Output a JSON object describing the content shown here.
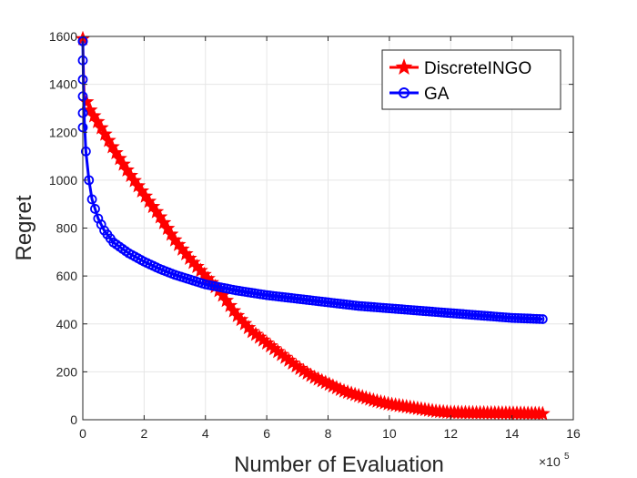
{
  "chart_data": {
    "type": "line",
    "title": "",
    "xlabel": "Number of Evaluation",
    "ylabel": "Regret",
    "x_exponent_base": "×10",
    "x_exponent_power": "5",
    "xlim": [
      0,
      16
    ],
    "ylim": [
      0,
      1600
    ],
    "xticks": [
      "0",
      "2",
      "4",
      "6",
      "8",
      "10",
      "12",
      "14",
      "16"
    ],
    "yticks": [
      "0",
      "200",
      "400",
      "600",
      "800",
      "1000",
      "1200",
      "1400",
      "1600"
    ],
    "grid": true,
    "legend_position": "top-right",
    "series": [
      {
        "name": "DiscreteINGO",
        "color": "#ff0000",
        "marker": "star",
        "x": [
          0,
          0.05,
          0.2,
          0.5,
          1.0,
          1.5,
          2.0,
          2.5,
          3.0,
          3.5,
          4.0,
          4.5,
          5.0,
          5.5,
          6.0,
          6.5,
          7.0,
          7.5,
          8.0,
          8.5,
          9.0,
          9.5,
          10.0,
          10.5,
          11.0,
          11.5,
          12.0,
          13.0,
          14.0,
          15.0
        ],
        "values": [
          1590,
          1350,
          1300,
          1240,
          1130,
          1030,
          940,
          850,
          750,
          670,
          600,
          530,
          440,
          370,
          320,
          270,
          220,
          180,
          150,
          120,
          100,
          80,
          65,
          55,
          45,
          35,
          30,
          28,
          27,
          25
        ]
      },
      {
        "name": "GA",
        "color": "#0000ff",
        "marker": "circle",
        "x": [
          0,
          0.02,
          0.05,
          0.1,
          0.2,
          0.3,
          0.5,
          0.7,
          1.0,
          1.5,
          2.0,
          2.5,
          3.0,
          3.5,
          4.0,
          5.0,
          6.0,
          7.0,
          8.0,
          9.0,
          10.0,
          11.0,
          12.0,
          13.0,
          14.0,
          15.0
        ],
        "values": [
          1580,
          1400,
          1250,
          1120,
          1000,
          920,
          840,
          790,
          740,
          695,
          660,
          630,
          605,
          585,
          565,
          540,
          520,
          505,
          490,
          475,
          465,
          455,
          445,
          435,
          425,
          420
        ]
      }
    ]
  }
}
